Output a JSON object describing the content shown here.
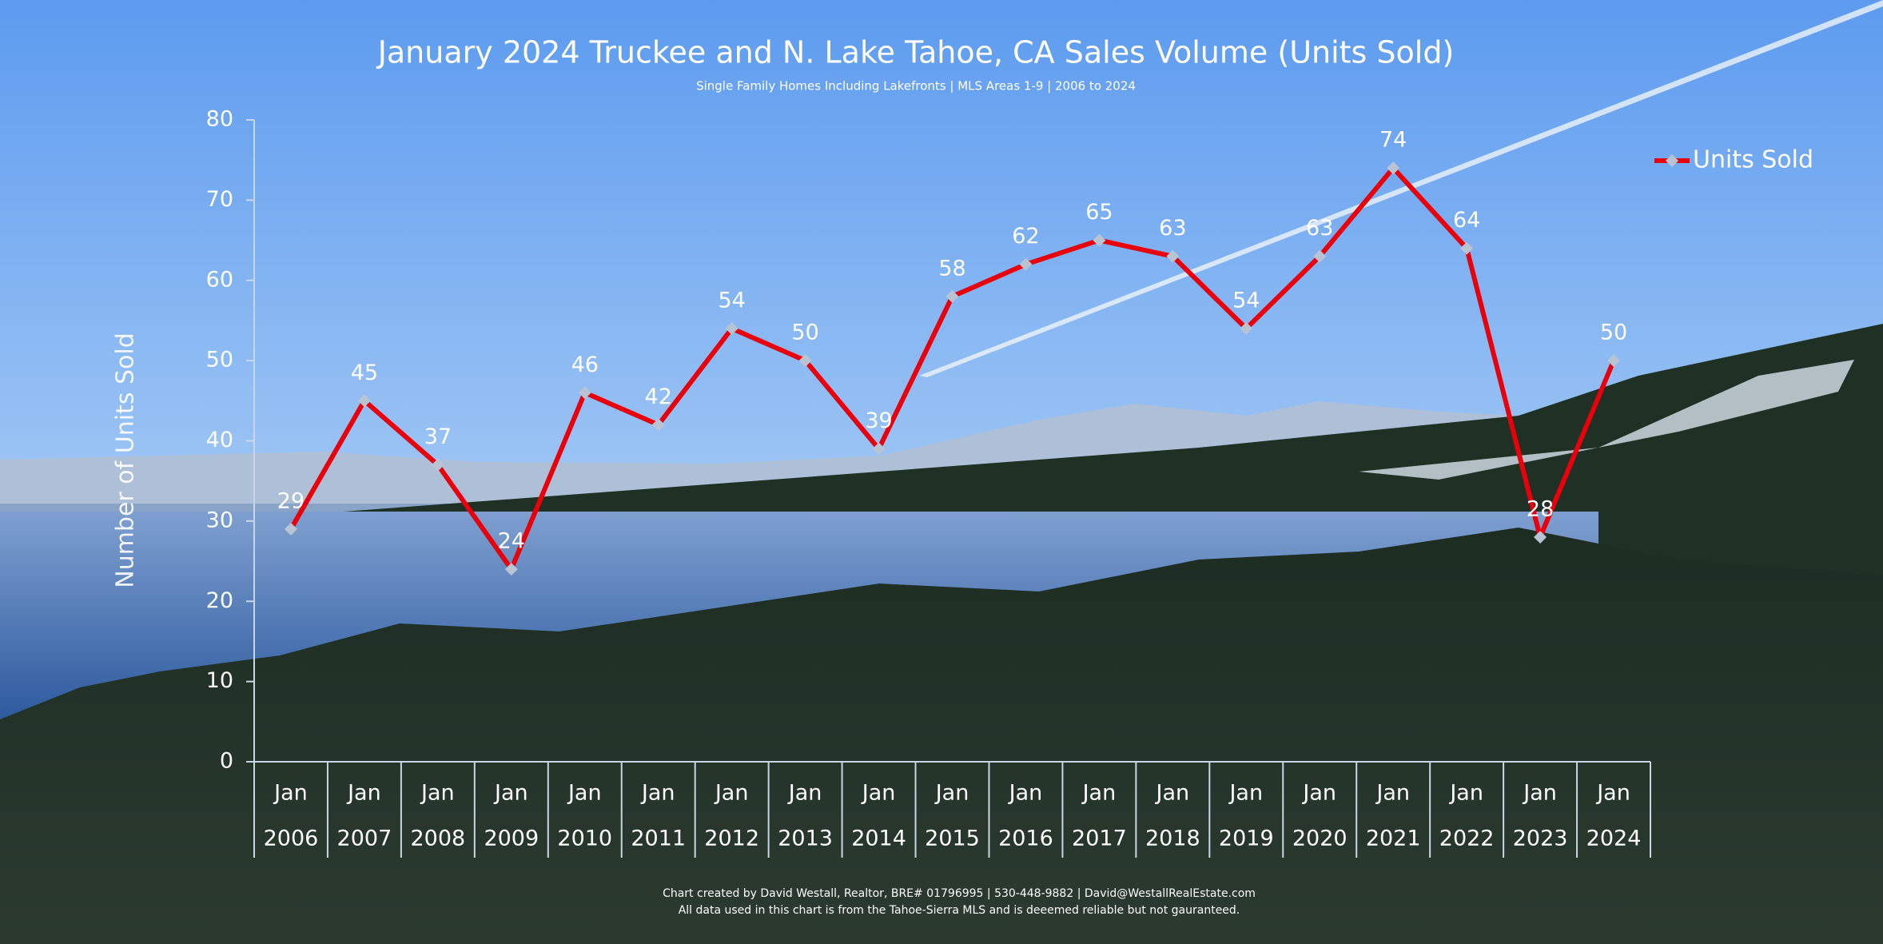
{
  "chart_data": {
    "type": "line",
    "title": "January 2024 Truckee and N. Lake Tahoe, CA Sales Volume (Units Sold)",
    "subtitle": "Single Family Homes Including Lakefronts | MLS Areas 1-9 | 2006 to 2024",
    "y_label": "Number of Units Sold",
    "categories": [
      [
        "Jan",
        "2006"
      ],
      [
        "Jan",
        "2007"
      ],
      [
        "Jan",
        "2008"
      ],
      [
        "Jan",
        "2009"
      ],
      [
        "Jan",
        "2010"
      ],
      [
        "Jan",
        "2011"
      ],
      [
        "Jan",
        "2012"
      ],
      [
        "Jan",
        "2013"
      ],
      [
        "Jan",
        "2014"
      ],
      [
        "Jan",
        "2015"
      ],
      [
        "Jan",
        "2016"
      ],
      [
        "Jan",
        "2017"
      ],
      [
        "Jan",
        "2018"
      ],
      [
        "Jan",
        "2019"
      ],
      [
        "Jan",
        "2020"
      ],
      [
        "Jan",
        "2021"
      ],
      [
        "Jan",
        "2022"
      ],
      [
        "Jan",
        "2023"
      ],
      [
        "Jan",
        "2024"
      ]
    ],
    "series": [
      {
        "name": "Units Sold",
        "color": "#e8000b",
        "marker_color": "#b8c4d4",
        "values": [
          29,
          45,
          37,
          24,
          46,
          42,
          54,
          50,
          39,
          58,
          62,
          65,
          63,
          54,
          63,
          74,
          64,
          28,
          50
        ]
      }
    ],
    "ylim": [
      0,
      80
    ],
    "yticks": [
      0,
      10,
      20,
      30,
      40,
      50,
      60,
      70,
      80
    ],
    "legend": "top-right",
    "footer": [
      "Chart created by David Westall, Realtor, BRE# 01796995 | 530-448-9882 | David@WestallRealEstate.com",
      "All data used in this chart is from the Tahoe-Sierra MLS and is deeemed reliable but  not gauranteed."
    ]
  }
}
